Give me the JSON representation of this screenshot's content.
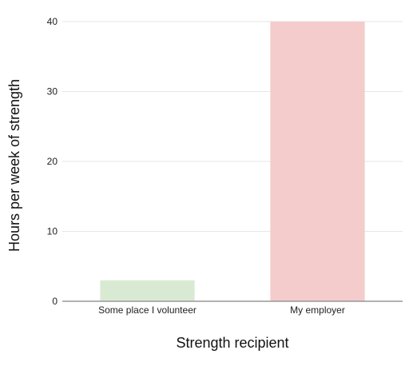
{
  "chart_data": {
    "type": "bar",
    "title": "",
    "xlabel": "Strength recipient",
    "ylabel": "Hours per week of strength",
    "categories": [
      "Some place I volunteer",
      "My employer"
    ],
    "values": [
      3,
      40
    ],
    "bar_colors": [
      "#d9ead3",
      "#f4cccc"
    ],
    "ylim": [
      0,
      40
    ],
    "yticks": [
      "0",
      "10",
      "20",
      "30",
      "40"
    ],
    "grid": true,
    "legend": "none"
  },
  "colors": {
    "grid": "#e6e6e6",
    "axis": "#999999",
    "text": "#222222"
  }
}
